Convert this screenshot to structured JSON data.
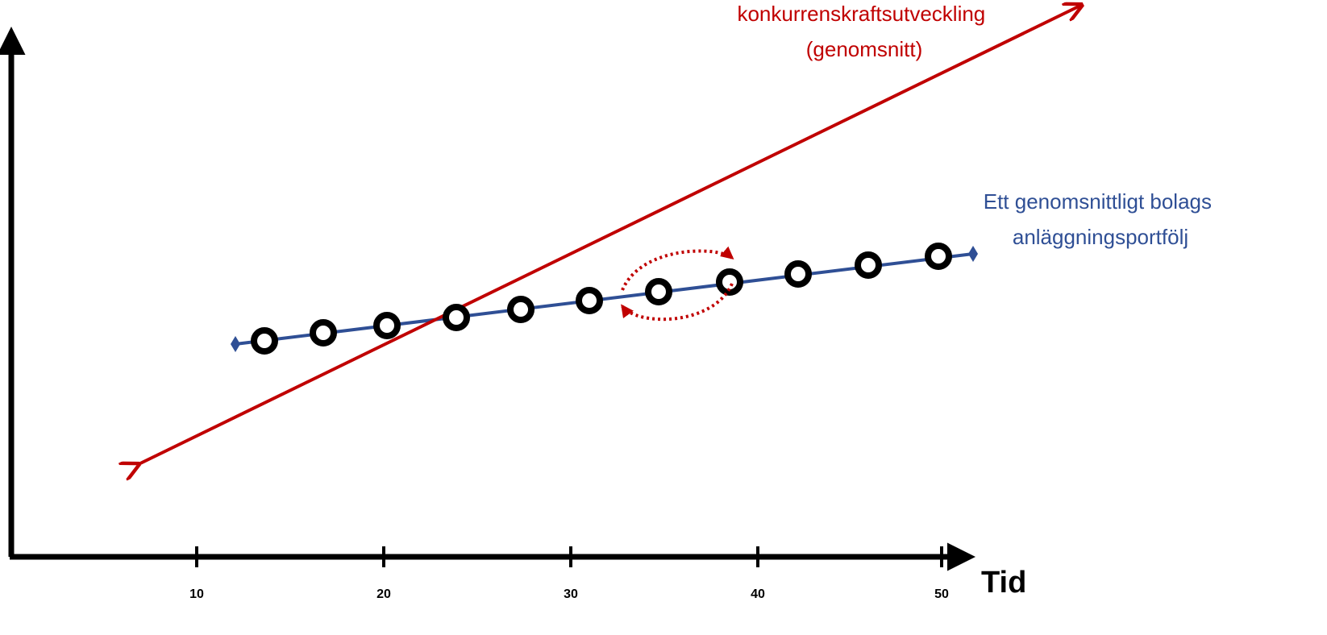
{
  "colors": {
    "axis": "#000000",
    "competitiveness": "#C00000",
    "portfolio": "#2F4F95",
    "asset": "#000000"
  },
  "axes": {
    "x_title": "Tid",
    "x_ticks": [
      "10",
      "20",
      "30",
      "40",
      "50"
    ]
  },
  "competitiveness_line": {
    "label_lines": [
      "konkurrenskraftsutveckling",
      "(genomsnitt)"
    ]
  },
  "portfolio_line": {
    "label_lines": [
      "Ett genomsnittligt bolags",
      "anläggningsportfölj"
    ],
    "asset_count": 11
  }
}
